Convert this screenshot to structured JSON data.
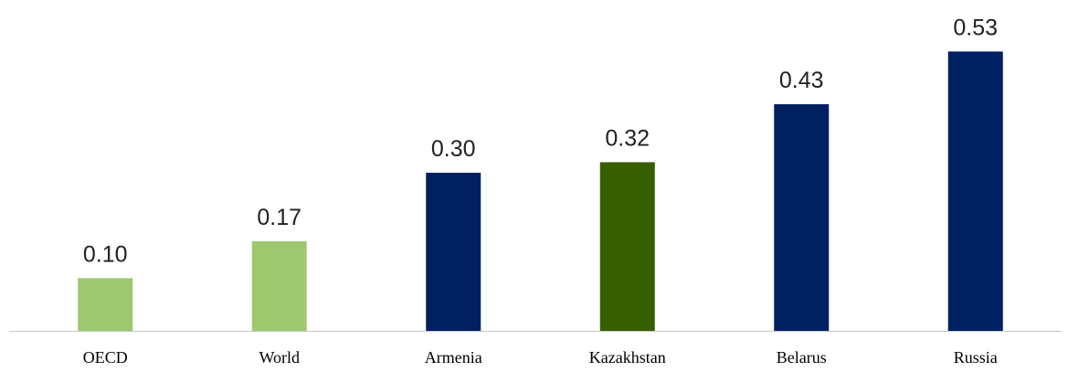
{
  "chart_data": {
    "type": "bar",
    "categories": [
      "OECD",
      "World",
      "Armenia",
      "Kazakhstan",
      "Belarus",
      "Russia"
    ],
    "values": [
      0.1,
      0.17,
      0.3,
      0.32,
      0.43,
      0.53
    ],
    "value_labels": [
      "0.10",
      "0.17",
      "0.30",
      "0.32",
      "0.43",
      "0.53"
    ],
    "colors": [
      "#9dc870",
      "#9dc870",
      "#002060",
      "#375f00",
      "#002060",
      "#002060"
    ],
    "ylim": [
      0,
      0.6
    ]
  }
}
